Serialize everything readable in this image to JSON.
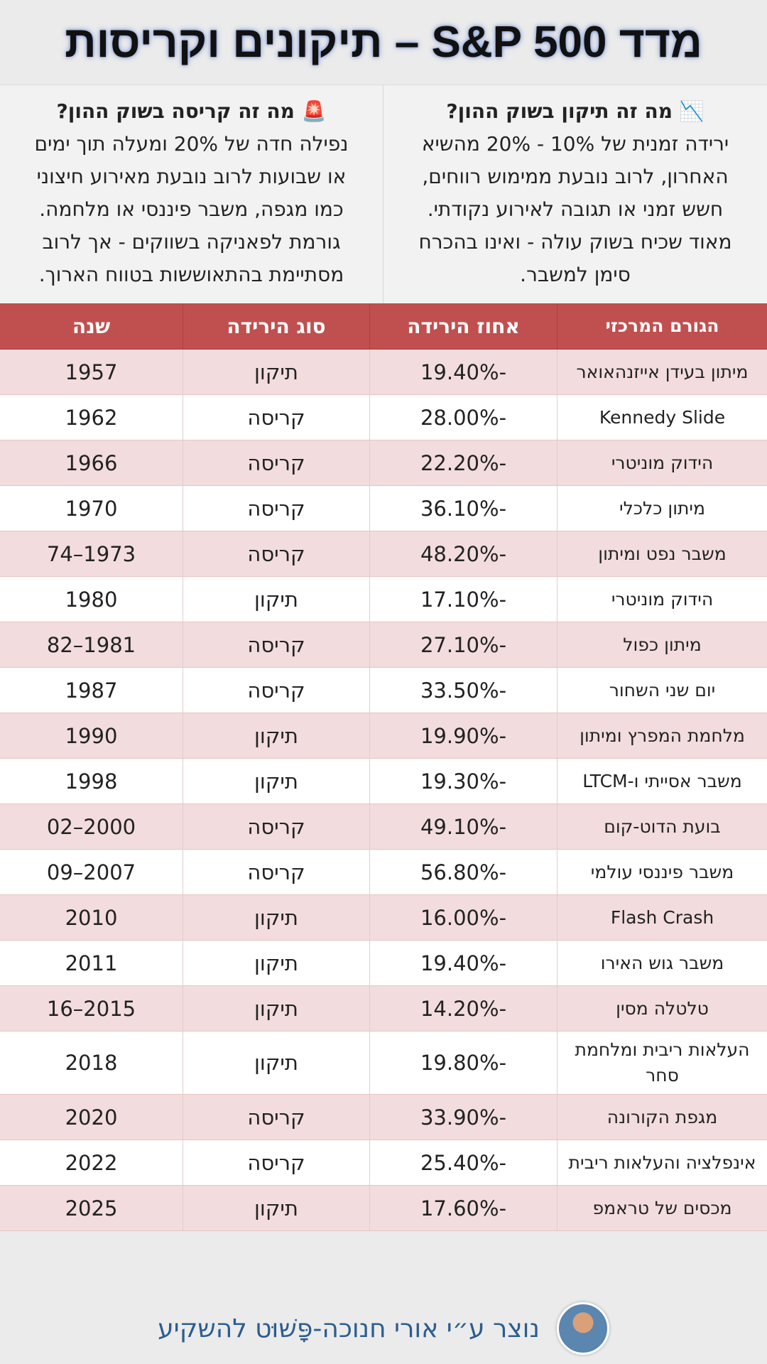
{
  "title": "מדד S&P 500 – תיקונים וקריסות",
  "info": [
    {
      "title": "📉 מה זה תיקון בשוק ההון?",
      "lines": [
        "ירידה זמנית של 10% - 20% מהשיא",
        "האחרון, לרוב נובעת ממימוש רווחים,",
        "חשש זמני או תגובה לאירוע נקודתי.",
        "מאוד שכיח בשוק עולה - ואינו בהכרח",
        "סימן למשבר."
      ]
    },
    {
      "title": "🚨 מה זה קריסה בשוק ההון?",
      "lines": [
        "נפילה חדה של 20% ומעלה תוך ימים",
        "או שבועות  לרוב נובעת מאירוע חיצוני",
        "כמו מגפה, משבר פיננסי או מלחמה.",
        "גורמת לפאניקה בשווקים - אך לרוב",
        "מסתיימת בהתאוששות בטווח הארוך."
      ]
    }
  ],
  "table": {
    "header": [
      "הגורם המרכזי",
      "אחוז הירידה",
      "סוג הירידה",
      "שנה"
    ],
    "rows": [
      [
        "מיתון בעידן אייזנהאואר",
        "-19.40%",
        "תיקון",
        "1957"
      ],
      [
        "Kennedy Slide",
        "-28.00%",
        "קריסה",
        "1962"
      ],
      [
        "הידוק מוניטרי",
        "-22.20%",
        "קריסה",
        "1966"
      ],
      [
        "מיתון כלכלי",
        "-36.10%",
        "קריסה",
        "1970"
      ],
      [
        "משבר נפט ומיתון",
        "-48.20%",
        "קריסה",
        "1973–74"
      ],
      [
        "הידוק מוניטרי",
        "-17.10%",
        "תיקון",
        "1980"
      ],
      [
        "מיתון כפול",
        "-27.10%",
        "קריסה",
        "1981–82"
      ],
      [
        "יום שני השחור",
        "-33.50%",
        "קריסה",
        "1987"
      ],
      [
        "מלחמת המפרץ ומיתון",
        "-19.90%",
        "תיקון",
        "1990"
      ],
      [
        "משבר אסייתי ו-LTCM",
        "-19.30%",
        "תיקון",
        "1998"
      ],
      [
        "בועת הדוט-קום",
        "-49.10%",
        "קריסה",
        "2000–02"
      ],
      [
        "משבר פיננסי עולמי",
        "-56.80%",
        "קריסה",
        "2007–09"
      ],
      [
        "Flash Crash",
        "-16.00%",
        "תיקון",
        "2010"
      ],
      [
        "משבר גוש האירו",
        "-19.40%",
        "תיקון",
        "2011"
      ],
      [
        "טלטלה מסין",
        "-14.20%",
        "תיקון",
        "2015–16"
      ],
      [
        "העלאות ריבית ומלחמת סחר",
        "-19.80%",
        "תיקון",
        "2018"
      ],
      [
        "מגפת הקורונה",
        "-33.90%",
        "קריסה",
        "2020"
      ],
      [
        "אינפלציה והעלאות ריבית",
        "-25.40%",
        "קריסה",
        "2022"
      ],
      [
        "מכסים של טראמפ",
        "-17.60%",
        "תיקון",
        "2025"
      ]
    ]
  },
  "footer": "נוצר ע״י אורי חנוכה-פָּשׁוּט להשקיע"
}
